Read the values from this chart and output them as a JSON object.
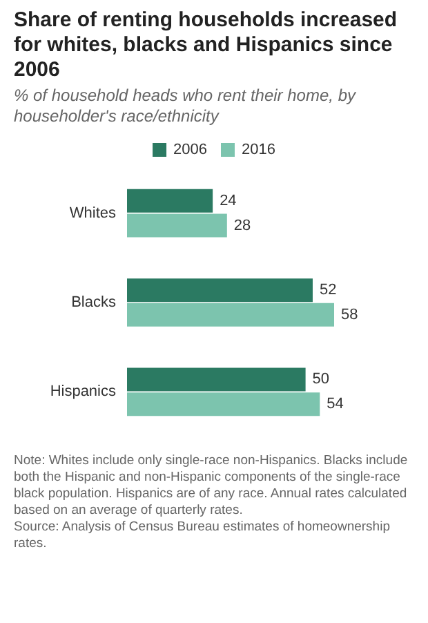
{
  "chart_data": {
    "type": "bar",
    "orientation": "horizontal",
    "title": "Share of renting households increased for whites, blacks and Hispanics since 2006",
    "subtitle": "% of household heads who rent their home, by householder's race/ethnicity",
    "categories": [
      "Whites",
      "Blacks",
      "Hispanics"
    ],
    "series": [
      {
        "name": "2006",
        "color": "#2b7a62",
        "values": [
          24,
          52,
          50
        ]
      },
      {
        "name": "2016",
        "color": "#7cc4ae",
        "values": [
          28,
          58,
          54
        ]
      }
    ],
    "data_labels": true,
    "legend": "top",
    "grid": false,
    "annotations": [
      "Note: Whites include only single-race non-Hispanics. Blacks include both the Hispanic and non-Hispanic components of the single-race black population. Hispanics are of any race. Annual rates calculated based on an average of quarterly rates.",
      "Source: Analysis of Census Bureau estimates of homeownership rates."
    ]
  }
}
